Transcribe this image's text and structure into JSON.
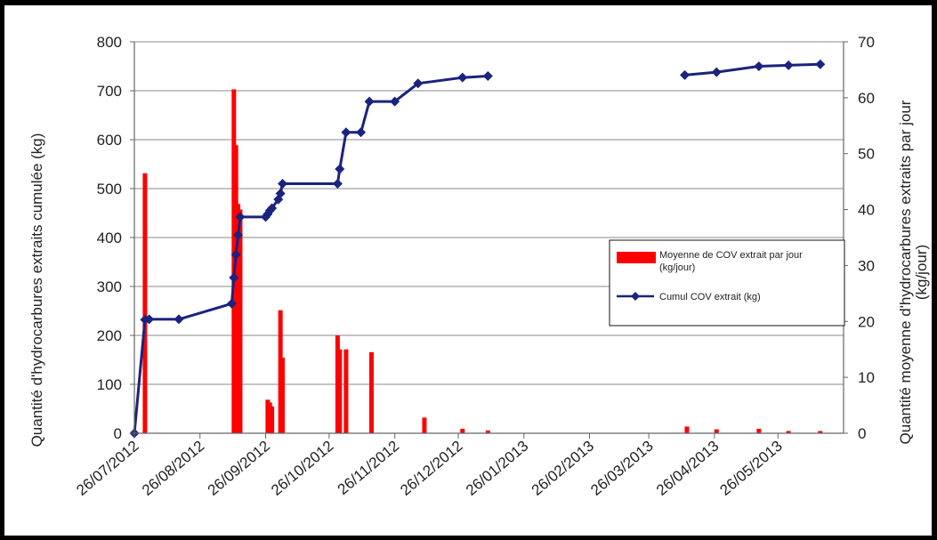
{
  "chart_data": {
    "type": "bar+line",
    "xlabel": "",
    "x_ticks": [
      "26/07/2012",
      "26/08/2012",
      "26/09/2012",
      "26/10/2012",
      "26/11/2012",
      "26/12/2012",
      "26/01/2013",
      "26/02/2013",
      "26/03/2013",
      "26/04/2013",
      "26/05/2013"
    ],
    "x_range": [
      "2012-07-26",
      "2013-06-26"
    ],
    "y_left": {
      "label": "Quantité d'hydrocarbures extraits cumulée (kg)",
      "min": 0,
      "max": 800,
      "ticks": [
        "0",
        "100",
        "200",
        "300",
        "400",
        "500",
        "600",
        "700",
        "800"
      ]
    },
    "y_right": {
      "label_line1": "Quantité moyenne d'hydrocarbures extraits par jour",
      "label_line2": "(kg/jour)",
      "min": 0,
      "max": 70,
      "ticks": [
        "0",
        "10",
        "20",
        "30",
        "40",
        "50",
        "60",
        "70"
      ]
    },
    "grid": "horizontal",
    "legend_position": "right",
    "legend": [
      {
        "label_line1": "Moyenne de COV extrait par jour",
        "label_line2": "(kg/jour)",
        "color": "#ff0000"
      },
      {
        "label_line1": "Cumul COV extrait (kg)",
        "label_line2": "",
        "color": "#1a237e"
      }
    ],
    "series": [
      {
        "name": "Moyenne de COV extrait par jour (kg/jour)",
        "axis": "right",
        "type": "bar",
        "color": "#ff0000",
        "points": [
          [
            "2012-07-31",
            46.5
          ],
          [
            "2012-09-11",
            61.5
          ],
          [
            "2012-09-12",
            51.5
          ],
          [
            "2012-09-13",
            41
          ],
          [
            "2012-09-14",
            40
          ],
          [
            "2012-09-27",
            6
          ],
          [
            "2012-09-28",
            5.5
          ],
          [
            "2012-09-29",
            4.8
          ],
          [
            "2012-10-03",
            22
          ],
          [
            "2012-10-04",
            13.5
          ],
          [
            "2012-10-30",
            17.5
          ],
          [
            "2012-10-31",
            15
          ],
          [
            "2012-11-03",
            15
          ],
          [
            "2012-11-15",
            14.5
          ],
          [
            "2012-12-10",
            2.8
          ],
          [
            "2012-12-28",
            0.8
          ],
          [
            "2013-01-09",
            0.5
          ],
          [
            "2013-04-13",
            1.2
          ],
          [
            "2013-04-27",
            0.7
          ],
          [
            "2013-05-17",
            0.8
          ],
          [
            "2013-05-31",
            0.4
          ],
          [
            "2013-06-15",
            0.4
          ]
        ]
      },
      {
        "name": "Cumul COV extrait (kg)",
        "axis": "left",
        "type": "line",
        "color": "#1a237e",
        "segments": [
          [
            [
              "2012-07-26",
              0
            ],
            [
              "2012-07-31",
              232
            ],
            [
              "2012-08-02",
              233
            ],
            [
              "2012-08-16",
              233
            ],
            [
              "2012-09-10",
              265
            ],
            [
              "2012-09-11",
              318
            ],
            [
              "2012-09-12",
              365
            ],
            [
              "2012-09-13",
              405
            ],
            [
              "2012-09-14",
              442
            ],
            [
              "2012-09-26",
              442
            ],
            [
              "2012-09-27",
              448
            ],
            [
              "2012-09-28",
              455
            ],
            [
              "2012-09-29",
              460
            ],
            [
              "2012-10-02",
              478
            ],
            [
              "2012-10-03",
              490
            ],
            [
              "2012-10-04",
              510
            ],
            [
              "2012-10-30",
              510
            ],
            [
              "2012-10-31",
              540
            ],
            [
              "2012-11-03",
              615
            ],
            [
              "2012-11-10",
              615
            ],
            [
              "2012-11-14",
              678
            ],
            [
              "2012-11-26",
              678
            ],
            [
              "2012-12-07",
              715
            ],
            [
              "2012-12-28",
              727
            ],
            [
              "2013-01-09",
              730
            ]
          ],
          [
            [
              "2013-04-12",
              732
            ],
            [
              "2013-04-27",
              738
            ],
            [
              "2013-05-17",
              750
            ],
            [
              "2013-05-31",
              752
            ],
            [
              "2013-06-15",
              754
            ]
          ]
        ]
      }
    ]
  }
}
